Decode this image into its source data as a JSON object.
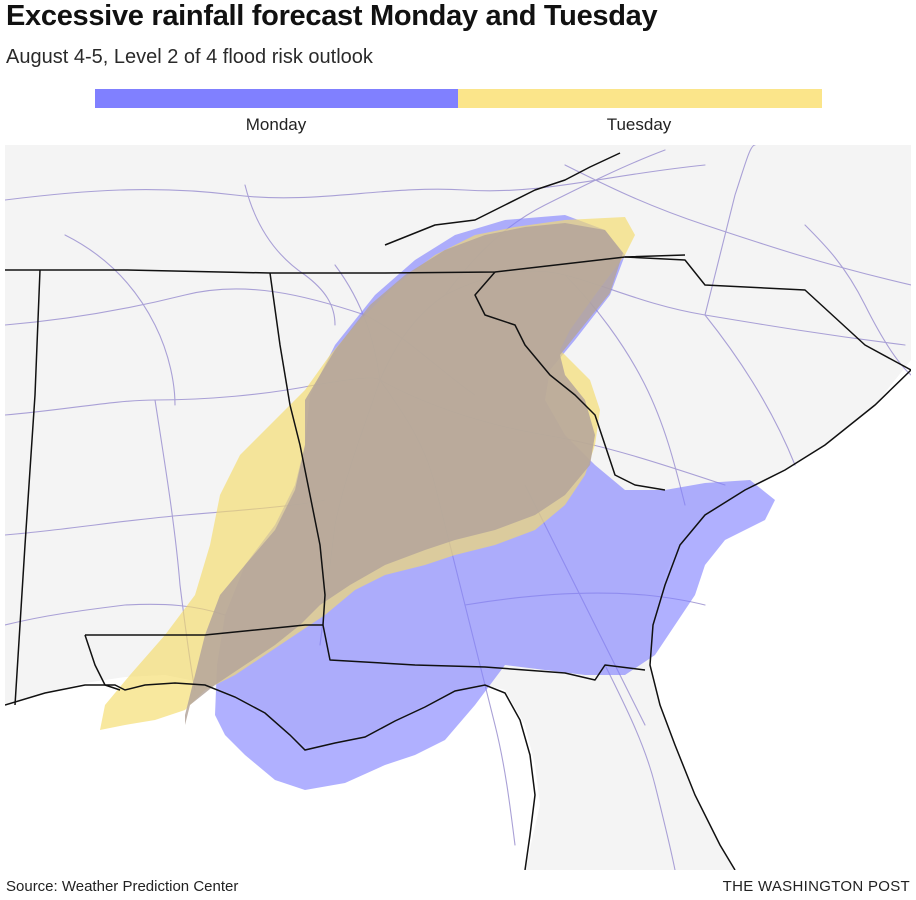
{
  "header": {
    "title": "Excessive rainfall forecast Monday and Tuesday",
    "subtitle": "August 4-5, Level 2 of 4 flood risk outlook"
  },
  "legend": {
    "items": [
      {
        "label": "Monday",
        "color": "#8080ff"
      },
      {
        "label": "Tuesday",
        "color": "#fbe58a"
      }
    ]
  },
  "map": {
    "land_color": "#f4f4f4",
    "water_color": "#ffffff",
    "road_color": "#a9a0d6",
    "border_color": "#111111",
    "monday_fill": "#8080ff",
    "tuesday_fill": "#f5db6a",
    "overlap_fill": "#b4a59b"
  },
  "footer": {
    "source": "Source: Weather Prediction Center",
    "credit": "THE WASHINGTON POST"
  }
}
